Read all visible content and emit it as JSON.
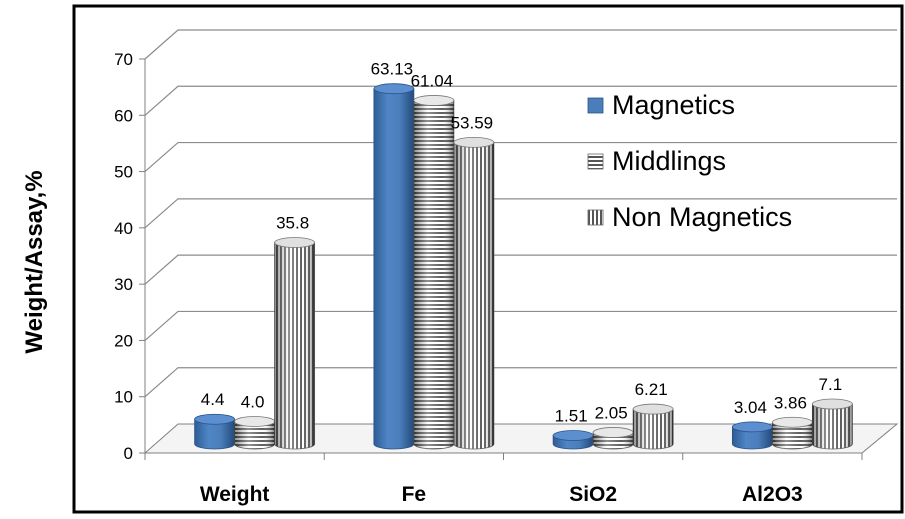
{
  "chart_data": {
    "type": "bar",
    "title": "",
    "xlabel": "",
    "ylabel": "Weight/Assay,%",
    "ylim": [
      0,
      70
    ],
    "yticks": [
      "0",
      "10",
      "20",
      "30",
      "40",
      "50",
      "60",
      "70"
    ],
    "categories": [
      "Weight",
      "Fe",
      "SiO2",
      "Al2O3"
    ],
    "series": [
      {
        "name": "Magnetics",
        "values": [
          4.4,
          63.13,
          1.51,
          3.04
        ],
        "labels": [
          "4.4",
          "63.13",
          "1.51",
          "3.04"
        ],
        "color": "#4a7ebb",
        "pattern": "solid"
      },
      {
        "name": "Middlings",
        "values": [
          4.0,
          61.04,
          2.05,
          3.86
        ],
        "labels": [
          "4.0",
          "61.04",
          "2.05",
          "3.86"
        ],
        "color": "#9a9a9a",
        "pattern": "horizontal-stripes"
      },
      {
        "name": "Non Magnetics",
        "values": [
          35.8,
          53.59,
          6.21,
          7.1
        ],
        "labels": [
          "35.8",
          "53.59",
          "6.21",
          "7.1"
        ],
        "color": "#9a9a9a",
        "pattern": "vertical-stripes"
      }
    ],
    "legend_position": "right",
    "grid": true
  }
}
